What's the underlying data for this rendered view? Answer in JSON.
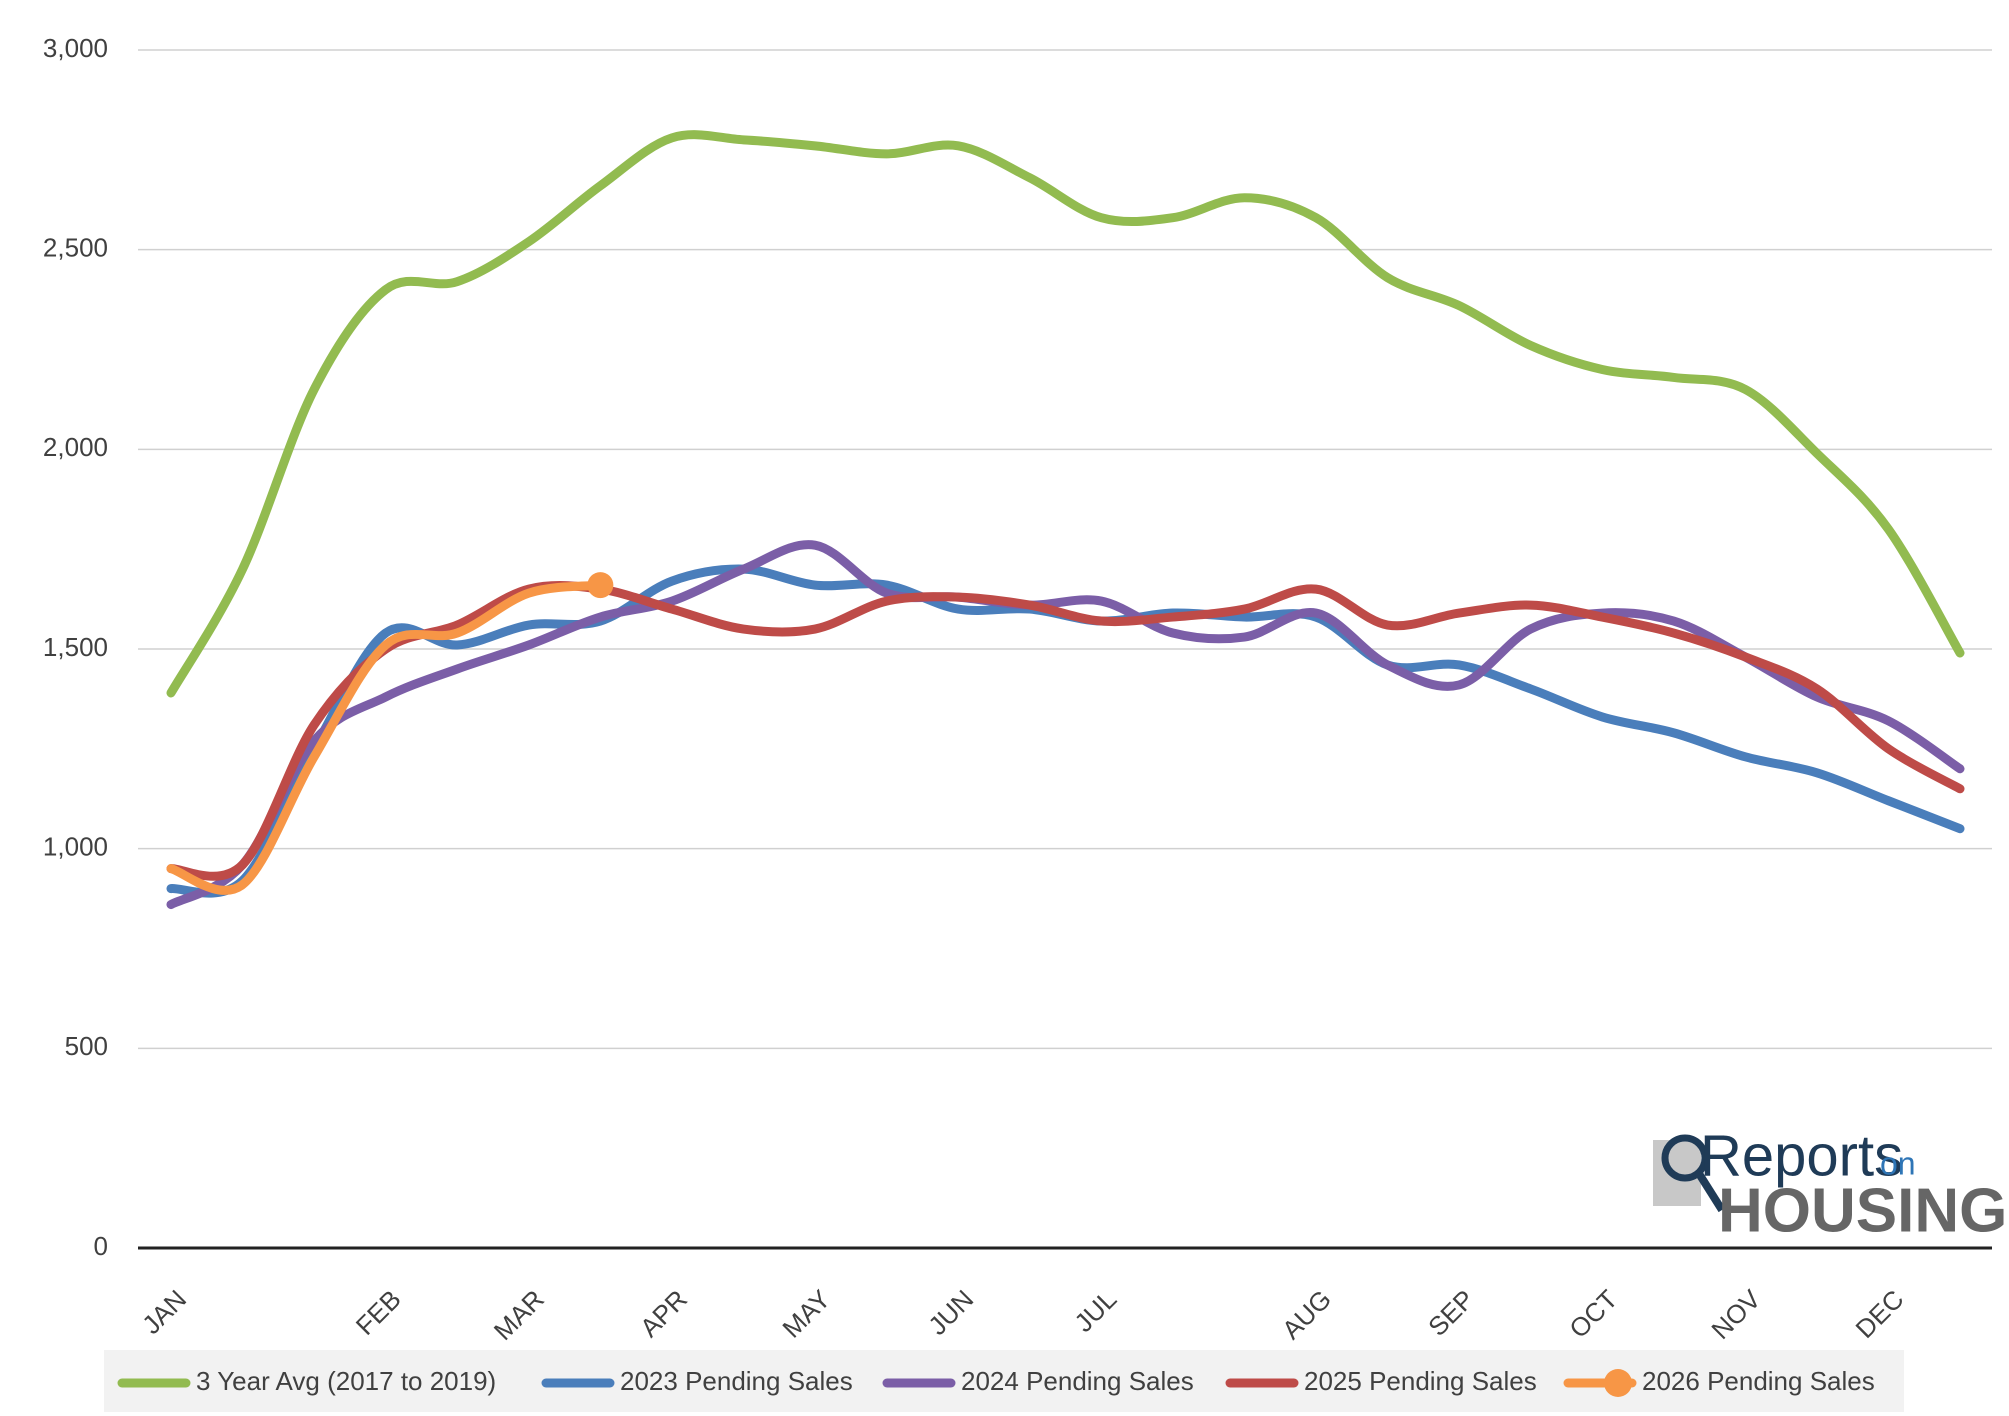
{
  "chart_data": {
    "type": "line",
    "categories": [
      "JAN",
      null,
      null,
      "FEB",
      null,
      "MAR",
      null,
      "APR",
      null,
      "MAY",
      null,
      "JUN",
      null,
      "JUL",
      null,
      null,
      "AUG",
      null,
      "SEP",
      null,
      "OCT",
      null,
      "NOV",
      null,
      "DEC",
      null
    ],
    "series": [
      {
        "name": "3 Year Avg (2017 to 2019)",
        "color": "#92bb50",
        "values": [
          1390,
          1700,
          2150,
          2400,
          2420,
          2520,
          2660,
          2780,
          2775,
          2760,
          2740,
          2760,
          2680,
          2580,
          2580,
          2630,
          2580,
          2430,
          2360,
          2260,
          2200,
          2180,
          2150,
          1990,
          1800,
          1490
        ]
      },
      {
        "name": "2023 Pending Sales",
        "color": "#4a7ebb",
        "values": [
          900,
          920,
          1250,
          1540,
          1510,
          1560,
          1570,
          1670,
          1700,
          1660,
          1660,
          1600,
          1600,
          1570,
          1590,
          1580,
          1580,
          1460,
          1460,
          1400,
          1330,
          1290,
          1230,
          1190,
          1120,
          1050
        ]
      },
      {
        "name": "2024 Pending Sales",
        "color": "#7b5ea7",
        "values": [
          860,
          960,
          1270,
          1380,
          1450,
          1510,
          1580,
          1620,
          1700,
          1760,
          1640,
          1630,
          1610,
          1620,
          1540,
          1530,
          1590,
          1460,
          1410,
          1550,
          1590,
          1570,
          1480,
          1380,
          1320,
          1200
        ]
      },
      {
        "name": "2025 Pending Sales",
        "color": "#be4b48",
        "values": [
          950,
          960,
          1310,
          1500,
          1560,
          1650,
          1650,
          1600,
          1550,
          1550,
          1620,
          1630,
          1610,
          1570,
          1580,
          1600,
          1650,
          1560,
          1590,
          1610,
          1580,
          1540,
          1480,
          1400,
          1250,
          1150
        ]
      },
      {
        "name": "2026 Pending Sales",
        "color": "#f79646",
        "values": [
          950,
          910,
          1230,
          1510,
          1540,
          1640,
          1660,
          null,
          null,
          null,
          null,
          null,
          null,
          null,
          null,
          null,
          null,
          null,
          null,
          null,
          null,
          null,
          null,
          null,
          null,
          null
        ]
      }
    ],
    "ylim": [
      0,
      3000
    ],
    "yticks": [
      0,
      500,
      {
        "value": 1000,
        "label": "1,000"
      },
      {
        "value": 1500,
        "label": "1,500"
      },
      {
        "value": 2000,
        "label": "2,000"
      },
      {
        "value": 2500,
        "label": "2,500"
      },
      {
        "value": 3000,
        "label": "3,000"
      }
    ],
    "grid": true,
    "legend": "bottom"
  },
  "logo": {
    "word1": "Reports",
    "word2": "on",
    "word3": "HOUSING"
  }
}
